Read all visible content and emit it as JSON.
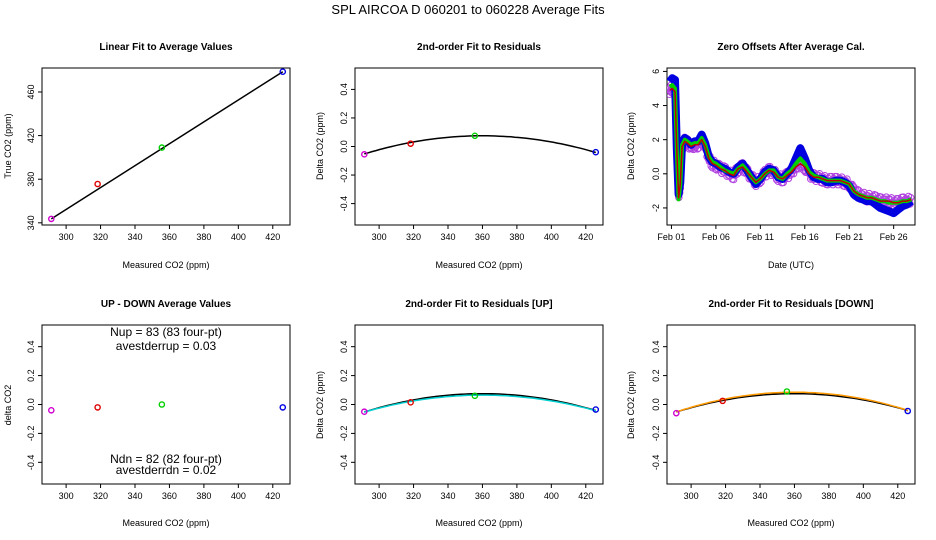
{
  "figure": {
    "title": "SPL    AIRCOA D    060201 to 060228    Average Fits"
  },
  "colors": {
    "level1": "#d000d0",
    "level2": "#e00000",
    "level3": "#00d000",
    "level4": "#0000e0",
    "fit_line": "#000000",
    "up_line": "#00d0d0",
    "down_line": "#ff9900",
    "offset_bg": "#b040e0",
    "offset_red": "#c00000"
  },
  "chart_data": [
    {
      "id": "linear",
      "type": "scatter",
      "title": "Linear Fit to Average Values",
      "xlabel": "Measured CO2 (ppm)",
      "ylabel": "True CO2 (ppm)",
      "xlim": [
        286,
        430
      ],
      "ylim": [
        338,
        482
      ],
      "xticks": [
        300,
        320,
        340,
        360,
        380,
        400,
        420
      ],
      "yticks": [
        340,
        380,
        420,
        460
      ],
      "points": [
        {
          "x": 291.4,
          "y": 343.6,
          "color": "level1"
        },
        {
          "x": 318.3,
          "y": 375.6,
          "color": "level2"
        },
        {
          "x": 355.6,
          "y": 409.0,
          "color": "level3"
        },
        {
          "x": 425.8,
          "y": 478.6,
          "color": "level4"
        }
      ],
      "line": {
        "type": "linear",
        "from": [
          291.4,
          343.6
        ],
        "to": [
          425.8,
          478.6
        ]
      }
    },
    {
      "id": "resid",
      "type": "scatter",
      "title": "2nd-order Fit to Residuals",
      "xlabel": "Measured CO2 (ppm)",
      "ylabel": "Delta CO2 (ppm)",
      "xlim": [
        286,
        430
      ],
      "ylim": [
        -0.55,
        0.55
      ],
      "xticks": [
        300,
        320,
        340,
        360,
        380,
        400,
        420
      ],
      "yticks": [
        -0.4,
        -0.2,
        0.0,
        0.2,
        0.4
      ],
      "points": [
        {
          "x": 291.4,
          "y": -0.055,
          "color": "level1"
        },
        {
          "x": 318.3,
          "y": 0.02,
          "color": "level2"
        },
        {
          "x": 355.6,
          "y": 0.075,
          "color": "level3"
        },
        {
          "x": 425.8,
          "y": -0.04,
          "color": "level4"
        }
      ],
      "curves": [
        {
          "vertex_x": 360,
          "vertex_y": 0.075,
          "a": -2.7e-05,
          "x_from": 291.4,
          "x_to": 425.8,
          "color": "fit_line"
        }
      ]
    },
    {
      "id": "offsets",
      "type": "line",
      "title": "Zero Offsets After Average Cal.",
      "xlabel": "Date (UTC)",
      "ylabel": "Delta CO2 (ppm)",
      "xlim": [
        0.5,
        28.4
      ],
      "ylim": [
        -3,
        6.2
      ],
      "xticks": [
        {
          "day": 1,
          "label": "Feb 01"
        },
        {
          "day": 6,
          "label": "Feb 06"
        },
        {
          "day": 11,
          "label": "Feb 11"
        },
        {
          "day": 16,
          "label": "Feb 16"
        },
        {
          "day": 21,
          "label": "Feb 21"
        },
        {
          "day": 26,
          "label": "Feb 26"
        }
      ],
      "yticks": [
        -2,
        0,
        2,
        4,
        6
      ],
      "x": [
        0.8,
        1.1,
        1.4,
        1.6,
        1.8,
        2.0,
        2.2,
        2.5,
        2.8,
        3.2,
        3.6,
        4.0,
        4.4,
        4.8,
        5.2,
        5.6,
        6.0,
        6.5,
        7.0,
        7.5,
        8.0,
        8.5,
        9.0,
        9.5,
        10.0,
        10.5,
        11.0,
        11.5,
        12.0,
        12.5,
        13.0,
        13.5,
        14.0,
        14.5,
        15.0,
        15.5,
        16.0,
        16.5,
        17.0,
        17.5,
        18.0,
        18.5,
        19.0,
        19.5,
        20.0,
        20.5,
        21.0,
        21.5,
        22.0,
        22.5,
        23.0,
        23.5,
        24.0,
        24.5,
        25.0,
        25.5,
        26.0,
        26.5,
        27.0,
        27.5,
        28.0
      ],
      "series": [
        {
          "color": "level4",
          "width": 8,
          "values": [
            5.4,
            5.6,
            5.5,
            1.5,
            -1.2,
            -0.5,
            1.8,
            2.1,
            2.0,
            1.7,
            1.9,
            1.9,
            2.3,
            1.8,
            1.0,
            0.7,
            0.6,
            0.4,
            0.3,
            0.1,
            0.0,
            0.4,
            0.6,
            0.2,
            -0.2,
            -0.6,
            -0.3,
            0.1,
            0.3,
            0.2,
            -0.2,
            -0.3,
            0.0,
            0.3,
            0.9,
            1.5,
            0.9,
            0.2,
            -0.2,
            -0.3,
            -0.3,
            -0.5,
            -0.5,
            -0.4,
            -0.4,
            -0.5,
            -0.7,
            -1.2,
            -1.4,
            -1.5,
            -1.6,
            -1.6,
            -1.8,
            -2.0,
            -2.1,
            -2.2,
            -2.3,
            -2.1,
            -1.9,
            -1.8,
            -1.6
          ]
        },
        {
          "color": "level3",
          "width": 4,
          "values": [
            5.1,
            5.2,
            5.0,
            1.4,
            -1.5,
            -0.6,
            1.7,
            2.0,
            1.9,
            1.7,
            1.8,
            1.8,
            2.1,
            1.7,
            1.0,
            0.7,
            0.6,
            0.4,
            0.2,
            0.1,
            0.0,
            0.3,
            0.5,
            0.2,
            -0.2,
            -0.5,
            -0.3,
            0.0,
            0.2,
            0.2,
            -0.2,
            -0.3,
            0.0,
            0.2,
            0.6,
            0.9,
            0.6,
            0.1,
            -0.1,
            -0.2,
            -0.3,
            -0.4,
            -0.4,
            -0.4,
            -0.4,
            -0.5,
            -0.6,
            -1.0,
            -1.2,
            -1.3,
            -1.4,
            -1.4,
            -1.5,
            -1.6,
            -1.6,
            -1.7,
            -1.7,
            -1.7,
            -1.6,
            -1.6,
            -1.5
          ]
        },
        {
          "color": "offset_red",
          "width": 1.5,
          "values": [
            4.9,
            5.0,
            4.8,
            1.4,
            -1.4,
            -0.6,
            1.6,
            1.9,
            1.8,
            1.6,
            1.7,
            1.7,
            2.0,
            1.6,
            0.9,
            0.6,
            0.5,
            0.3,
            0.2,
            0.0,
            -0.1,
            0.3,
            0.4,
            0.1,
            -0.2,
            -0.5,
            -0.3,
            0.0,
            0.2,
            0.1,
            -0.2,
            -0.3,
            -0.1,
            0.1,
            0.4,
            0.6,
            0.4,
            0.0,
            -0.2,
            -0.2,
            -0.3,
            -0.4,
            -0.4,
            -0.4,
            -0.4,
            -0.5,
            -0.6,
            -1.0,
            -1.2,
            -1.3,
            -1.4,
            -1.4,
            -1.5,
            -1.6,
            -1.6,
            -1.6,
            -1.7,
            -1.7,
            -1.6,
            -1.6,
            -1.5
          ]
        }
      ]
    },
    {
      "id": "updown",
      "type": "scatter",
      "title": "UP - DOWN Average Values",
      "xlabel": "Measured CO2 (ppm)",
      "ylabel": "delta CO2",
      "xlim": [
        286,
        430
      ],
      "ylim": [
        -0.55,
        0.55
      ],
      "xticks": [
        300,
        320,
        340,
        360,
        380,
        400,
        420
      ],
      "yticks": [
        -0.4,
        -0.2,
        0.0,
        0.2,
        0.4
      ],
      "points": [
        {
          "x": 291.4,
          "y": -0.04,
          "color": "level1"
        },
        {
          "x": 318.3,
          "y": -0.02,
          "color": "level2"
        },
        {
          "x": 355.6,
          "y": 0.0,
          "color": "level3"
        },
        {
          "x": 425.8,
          "y": -0.02,
          "color": "level4"
        }
      ],
      "annotations": {
        "nup": "Nup = 83 (83 four-pt)",
        "avestderrup": "avestderrup =  0.03",
        "ndn": "Ndn = 82 (82 four-pt)",
        "avestderrdn": "avestderrdn =  0.02"
      }
    },
    {
      "id": "resid_up",
      "type": "scatter",
      "title": "2nd-order Fit to Residuals [UP]",
      "xlabel": "Measured CO2 (ppm)",
      "ylabel": "Delta CO2 (ppm)",
      "xlim": [
        286,
        430
      ],
      "ylim": [
        -0.55,
        0.55
      ],
      "xticks": [
        300,
        320,
        340,
        360,
        380,
        400,
        420
      ],
      "yticks": [
        -0.4,
        -0.2,
        0.0,
        0.2,
        0.4
      ],
      "points": [
        {
          "x": 291.4,
          "y": -0.05,
          "color": "level1"
        },
        {
          "x": 318.3,
          "y": 0.015,
          "color": "level2"
        },
        {
          "x": 355.6,
          "y": 0.06,
          "color": "level3"
        },
        {
          "x": 425.8,
          "y": -0.035,
          "color": "level4"
        }
      ],
      "curves": [
        {
          "vertex_x": 360,
          "vertex_y": 0.075,
          "a": -2.7e-05,
          "x_from": 291.4,
          "x_to": 425.8,
          "color": "fit_line"
        },
        {
          "vertex_x": 360,
          "vertex_y": 0.065,
          "a": -2.5e-05,
          "x_from": 291.4,
          "x_to": 425.8,
          "color": "up_line"
        }
      ]
    },
    {
      "id": "resid_down",
      "type": "scatter",
      "title": "2nd-order Fit to Residuals [DOWN]",
      "xlabel": "Measured CO2 (ppm)",
      "ylabel": "Delta CO2 (ppm)",
      "xlim": [
        286,
        430
      ],
      "ylim": [
        -0.55,
        0.55
      ],
      "xticks": [
        300,
        320,
        340,
        360,
        380,
        400,
        420
      ],
      "yticks": [
        -0.4,
        -0.2,
        0.0,
        0.2,
        0.4
      ],
      "points": [
        {
          "x": 291.4,
          "y": -0.06,
          "color": "level1"
        },
        {
          "x": 318.3,
          "y": 0.025,
          "color": "level2"
        },
        {
          "x": 355.6,
          "y": 0.09,
          "color": "level3"
        },
        {
          "x": 425.8,
          "y": -0.045,
          "color": "level4"
        }
      ],
      "curves": [
        {
          "vertex_x": 360,
          "vertex_y": 0.075,
          "a": -2.7e-05,
          "x_from": 291.4,
          "x_to": 425.8,
          "color": "fit_line"
        },
        {
          "vertex_x": 360,
          "vertex_y": 0.085,
          "a": -2.9e-05,
          "x_from": 291.4,
          "x_to": 425.8,
          "color": "down_line"
        }
      ]
    }
  ]
}
